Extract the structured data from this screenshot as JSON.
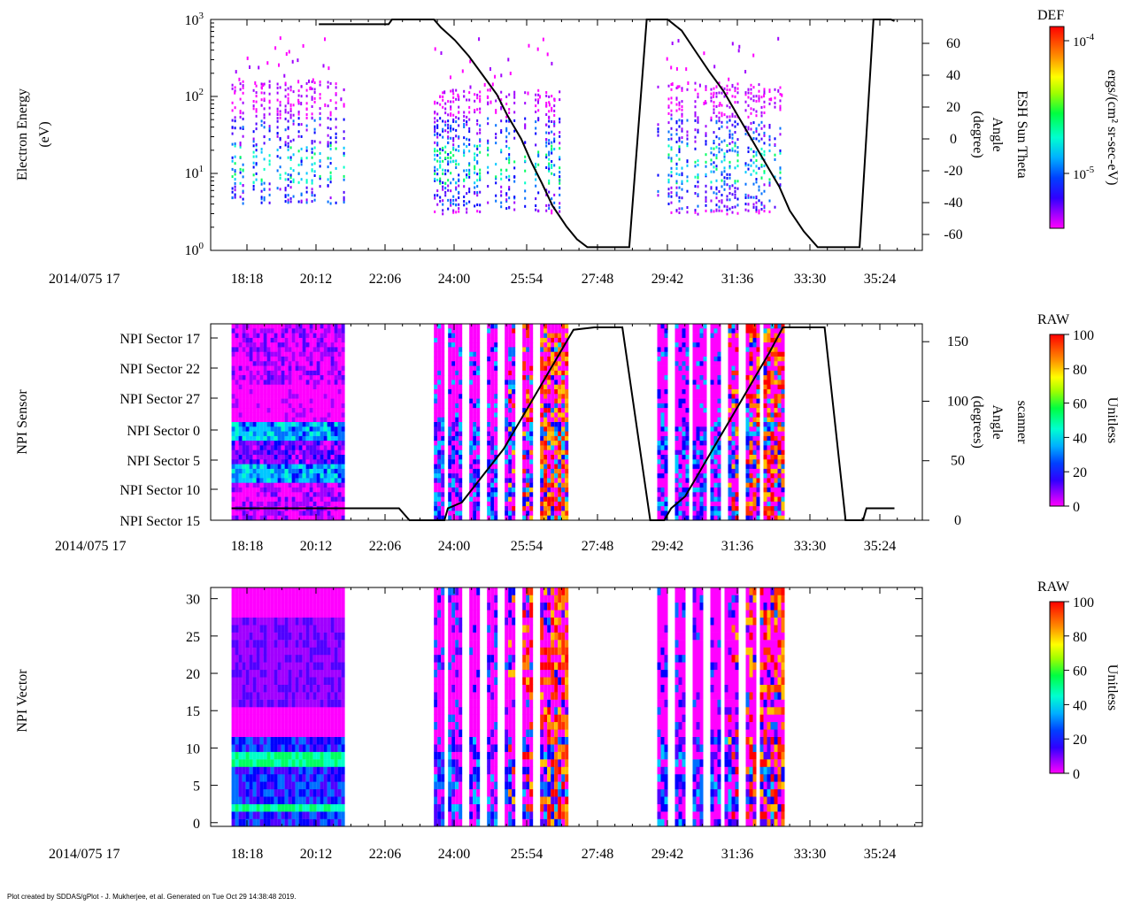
{
  "footer": "Plot created by SDDAS/gPlot - J. Mukherjee, et al.  Generated on Tue Oct 29 14:38:48 2019.",
  "colors": {
    "colormap": [
      "#ff00ff",
      "#a000ff",
      "#5000ff",
      "#0000ff",
      "#0070ff",
      "#00c8ff",
      "#00ffc8",
      "#00ff60",
      "#40ff00",
      "#b0ff00",
      "#ffff00",
      "#ffc000",
      "#ff8000",
      "#ff3000",
      "#ff0000"
    ],
    "trace": "#000000"
  },
  "chart_data": [
    {
      "type": "heatmap",
      "ylabel": [
        "Electron Energy",
        "(eV)"
      ],
      "y2label": [
        "Angle",
        "(degree)",
        "ESH Sun Theta"
      ],
      "date_label": "2014/075 17",
      "xticks": [
        "18:18",
        "20:12",
        "22:06",
        "24:00",
        "25:54",
        "27:48",
        "29:42",
        "31:36",
        "33:30",
        "35:24"
      ],
      "yscale": "log",
      "ylim": [
        1,
        1000
      ],
      "yticks": [
        {
          "base": "10",
          "exp": "0"
        },
        {
          "base": "10",
          "exp": "1"
        },
        {
          "base": "10",
          "exp": "2"
        },
        {
          "base": "10",
          "exp": "3"
        }
      ],
      "y2lim": [
        -70,
        75
      ],
      "y2ticks": [
        "60",
        "40",
        "20",
        "0",
        "-20",
        "-40",
        "-60"
      ],
      "y2values": [
        60,
        40,
        20,
        0,
        -20,
        -40,
        -60
      ],
      "colorbar": {
        "title": "DEF",
        "label": "ergs/(cm² sr-sec-eV)",
        "ticks": [
          {
            "base": "10",
            "exp": "-4"
          },
          {
            "base": "10",
            "exp": "-5"
          }
        ]
      },
      "line_series": {
        "name": "ESH Sun Theta",
        "points": [
          [
            19.5,
            72
          ],
          [
            21.5,
            72
          ],
          [
            21.6,
            75
          ],
          [
            22.8,
            75
          ],
          [
            23.0,
            70
          ],
          [
            23.4,
            62
          ],
          [
            23.8,
            52
          ],
          [
            24.2,
            40
          ],
          [
            24.6,
            28
          ],
          [
            24.9,
            15
          ],
          [
            25.3,
            0
          ],
          [
            25.6,
            -15
          ],
          [
            25.9,
            -28
          ],
          [
            26.2,
            -42
          ],
          [
            26.6,
            -55
          ],
          [
            26.9,
            -63
          ],
          [
            27.2,
            -68
          ],
          [
            28.0,
            -68
          ],
          [
            28.4,
            -68
          ],
          [
            28.9,
            75
          ],
          [
            29.5,
            75
          ],
          [
            29.9,
            68
          ],
          [
            30.3,
            55
          ],
          [
            30.7,
            42
          ],
          [
            31.1,
            30
          ],
          [
            31.5,
            15
          ],
          [
            31.9,
            0
          ],
          [
            32.3,
            -15
          ],
          [
            32.7,
            -30
          ],
          [
            33.0,
            -45
          ],
          [
            33.4,
            -58
          ],
          [
            33.8,
            -68
          ],
          [
            34.5,
            -68
          ],
          [
            35.0,
            -68
          ],
          [
            35.4,
            75
          ],
          [
            35.9,
            75
          ],
          [
            36.0,
            74
          ]
        ]
      },
      "data_blocks": [
        {
          "t0": 17.0,
          "t1": 20.2,
          "ymin": 4,
          "ymax": 160
        },
        {
          "t0": 22.8,
          "t1": 26.6,
          "ymin": 3,
          "ymax": 120
        },
        {
          "t0": 29.2,
          "t1": 32.8,
          "ymin": 3,
          "ymax": 150
        }
      ]
    },
    {
      "type": "heatmap",
      "ylabel": [
        "NPI Sensor"
      ],
      "y2label": [
        "Angle",
        "(degrees)",
        "scanner"
      ],
      "date_label": "2014/075 17",
      "xticks": [
        "18:18",
        "20:12",
        "22:06",
        "24:00",
        "25:54",
        "27:48",
        "29:42",
        "31:36",
        "33:30",
        "35:24"
      ],
      "ycategories": [
        "NPI Sector 17",
        "NPI Sector 22",
        "NPI Sector 27",
        "NPI Sector 0",
        "NPI Sector 5",
        "NPI Sector 10",
        "NPI Sector 15"
      ],
      "y2lim": [
        0,
        165
      ],
      "y2ticks": [
        "150",
        "100",
        "50",
        "0"
      ],
      "y2values": [
        150,
        100,
        50,
        0
      ],
      "colorbar": {
        "title": "RAW",
        "label": "Unitless",
        "ticks": [
          "100",
          "80",
          "60",
          "40",
          "20",
          "0"
        ],
        "range": [
          0,
          100
        ]
      },
      "line_series": {
        "name": "scanner Angle",
        "points": [
          [
            17.0,
            10
          ],
          [
            20.7,
            10
          ],
          [
            21.8,
            10
          ],
          [
            22.1,
            0
          ],
          [
            23.1,
            0
          ],
          [
            23.2,
            10
          ],
          [
            23.6,
            15
          ],
          [
            24.0,
            30
          ],
          [
            24.4,
            45
          ],
          [
            24.8,
            60
          ],
          [
            25.2,
            80
          ],
          [
            25.6,
            100
          ],
          [
            26.0,
            120
          ],
          [
            26.4,
            140
          ],
          [
            26.8,
            160
          ],
          [
            27.4,
            162
          ],
          [
            28.0,
            162
          ],
          [
            28.2,
            162
          ],
          [
            29.0,
            0
          ],
          [
            29.4,
            0
          ],
          [
            29.6,
            10
          ],
          [
            30.0,
            20
          ],
          [
            30.4,
            40
          ],
          [
            30.8,
            60
          ],
          [
            31.2,
            80
          ],
          [
            31.6,
            100
          ],
          [
            32.0,
            120
          ],
          [
            32.4,
            140
          ],
          [
            32.8,
            162
          ],
          [
            33.5,
            162
          ],
          [
            34.0,
            162
          ],
          [
            34.6,
            0
          ],
          [
            35.1,
            0
          ],
          [
            35.2,
            10
          ],
          [
            36.0,
            10
          ]
        ]
      },
      "data_blocks": [
        {
          "t0": 17.0,
          "t1": 20.2,
          "style": "quiet"
        },
        {
          "t0": 22.8,
          "t1": 26.6,
          "style": "active"
        },
        {
          "t0": 29.2,
          "t1": 32.8,
          "style": "active"
        }
      ]
    },
    {
      "type": "heatmap",
      "ylabel": [
        "NPI Vector"
      ],
      "date_label": "2014/075 17",
      "xticks": [
        "18:18",
        "20:12",
        "22:06",
        "24:00",
        "25:54",
        "27:48",
        "29:42",
        "31:36",
        "33:30",
        "35:24"
      ],
      "ylim": [
        -0.5,
        31.5
      ],
      "yticks": [
        "30",
        "25",
        "20",
        "15",
        "10",
        "5",
        "0"
      ],
      "yvalues": [
        30,
        25,
        20,
        15,
        10,
        5,
        0
      ],
      "colorbar": {
        "title": "RAW",
        "label": "Unitless",
        "ticks": [
          "100",
          "80",
          "60",
          "40",
          "20",
          "0"
        ],
        "range": [
          0,
          100
        ]
      },
      "data_blocks": [
        {
          "t0": 17.0,
          "t1": 20.2,
          "style": "quiet"
        },
        {
          "t0": 22.8,
          "t1": 26.6,
          "style": "active"
        },
        {
          "t0": 29.2,
          "t1": 32.8,
          "style": "active"
        }
      ]
    }
  ]
}
